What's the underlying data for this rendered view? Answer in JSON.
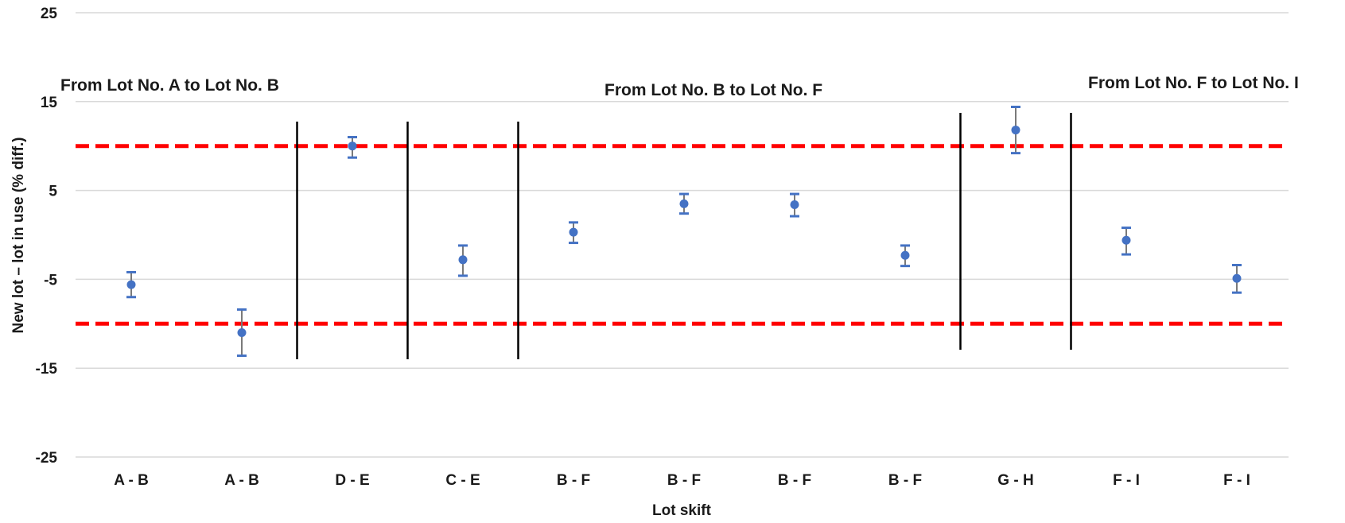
{
  "chart_data": {
    "type": "scatter",
    "title": "",
    "xlabel": "Lot skift",
    "ylabel": "New lot – lot in use (% diff.)",
    "ylim": [
      -25,
      25
    ],
    "yticks": [
      25,
      15,
      5,
      -5,
      -15,
      -25
    ],
    "grid": true,
    "legend": "none",
    "categories": [
      "A - B",
      "A - B",
      "D - E",
      "C - E",
      "B - F",
      "B - F",
      "B - F",
      "B - F",
      "G - H",
      "F - I",
      "F - I"
    ],
    "series": [
      {
        "values": [
          -5.6,
          -11.0,
          10.0,
          -2.8,
          0.3,
          3.5,
          3.4,
          -2.3,
          11.8,
          -0.6,
          -4.9
        ],
        "error_low": [
          1.4,
          2.6,
          1.3,
          1.8,
          1.2,
          1.1,
          1.3,
          1.2,
          2.6,
          1.6,
          1.6
        ],
        "error_high": [
          1.4,
          2.6,
          1.0,
          1.6,
          1.1,
          1.1,
          1.2,
          1.1,
          2.6,
          1.4,
          1.5
        ],
        "color": "#4472C4"
      }
    ],
    "limit_lines": [
      {
        "y": 10,
        "color": "#FF0000",
        "style": "dashed"
      },
      {
        "y": -10,
        "color": "#FF0000",
        "style": "dashed"
      }
    ],
    "separators_after_index": [
      1,
      2,
      3,
      7,
      8
    ],
    "annotations": [
      {
        "text": "From Lot No. A to Lot No. B"
      },
      {
        "text": "From Lot No. B to Lot No. F"
      },
      {
        "text": "From Lot No. F to Lot No. I"
      }
    ],
    "colors": {
      "grid": "#D9D9D9",
      "marker": "#4472C4",
      "error_bar": "#4472C4",
      "limit": "#FF0000",
      "separator": "#000000"
    }
  }
}
